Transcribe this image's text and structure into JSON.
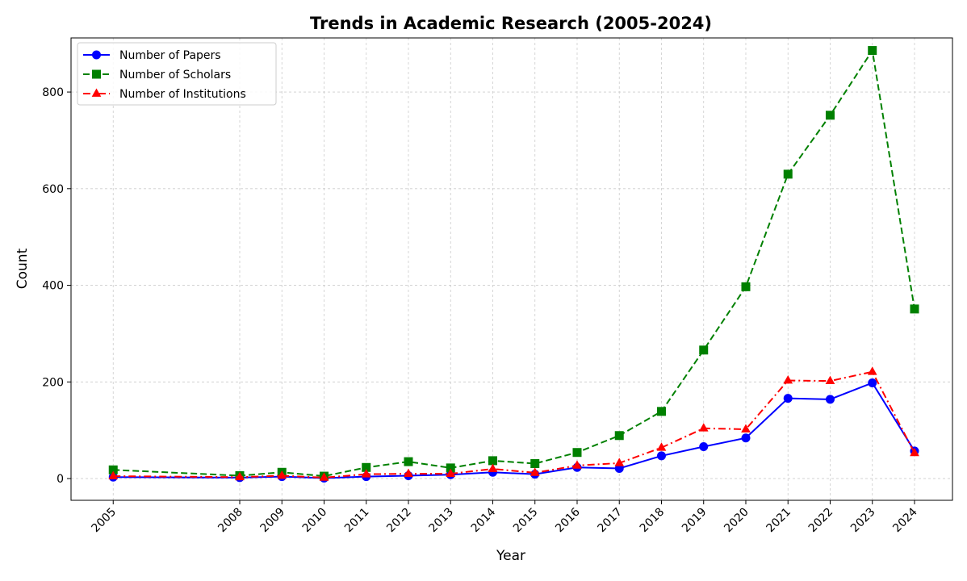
{
  "chart_data": {
    "type": "line",
    "title": "Trends in Academic Research (2005-2024)",
    "xlabel": "Year",
    "ylabel": "Count",
    "x": [
      2005,
      2008,
      2009,
      2010,
      2011,
      2012,
      2013,
      2014,
      2015,
      2016,
      2017,
      2018,
      2019,
      2020,
      2021,
      2022,
      2023,
      2024
    ],
    "x_tick_labels": [
      "2005",
      "2008",
      "2009",
      "2010",
      "2011",
      "2012",
      "2013",
      "2014",
      "2015",
      "2016",
      "2017",
      "2018",
      "2019",
      "2020",
      "2021",
      "2022",
      "2023",
      "2024"
    ],
    "xlim": [
      2004.0,
      2024.9
    ],
    "ylim": [
      -45,
      912
    ],
    "y_ticks": [
      0,
      200,
      400,
      600,
      800
    ],
    "grid": true,
    "legend_position": "top-left",
    "series": [
      {
        "name": "Number of Papers",
        "color": "#0000ff",
        "line_style": "solid",
        "marker": "circle",
        "values": [
          3,
          2,
          4,
          1,
          4,
          6,
          8,
          13,
          9,
          23,
          21,
          47,
          66,
          84,
          166,
          164,
          198,
          57
        ]
      },
      {
        "name": "Number of Scholars",
        "color": "#008000",
        "line_style": "dashed",
        "marker": "square",
        "values": [
          18,
          6,
          13,
          5,
          23,
          35,
          22,
          37,
          31,
          54,
          89,
          139,
          266,
          397,
          630,
          752,
          886,
          351
        ]
      },
      {
        "name": "Number of Institutions",
        "color": "#ff0000",
        "line_style": "dashdot",
        "marker": "triangle",
        "values": [
          5,
          3,
          6,
          2,
          9,
          10,
          10,
          20,
          12,
          27,
          32,
          64,
          104,
          102,
          203,
          202,
          221,
          53
        ]
      }
    ]
  }
}
